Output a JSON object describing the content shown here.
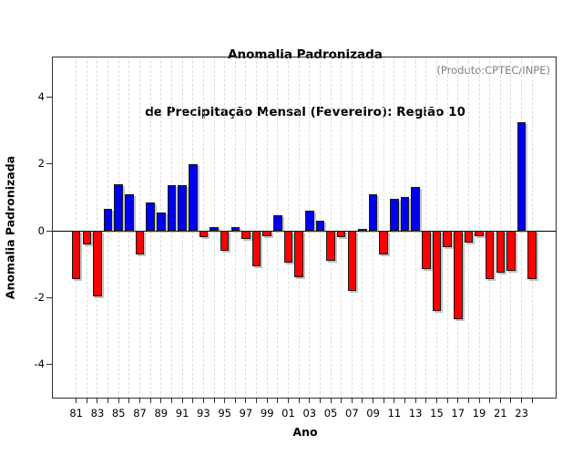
{
  "chart_data": {
    "type": "bar",
    "title_line1": "Anomalia Padronizada",
    "title_line2": "de Precipitação Mensal (Fevereiro): Região 10",
    "annotation": "(Produto:CPTEC/INPE)",
    "xlabel": "Ano",
    "ylabel": "Anomalia Padronizada",
    "ylim": [
      -5.2,
      5.2
    ],
    "yticks": [
      -4,
      -2,
      0,
      2,
      4
    ],
    "ytick_labels": [
      "-4",
      "-2",
      "0",
      "2",
      "4"
    ],
    "xtick_labels": [
      "81",
      "83",
      "85",
      "87",
      "89",
      "91",
      "93",
      "95",
      "97",
      "99",
      "01",
      "03",
      "05",
      "07",
      "09",
      "11",
      "13",
      "15",
      "17",
      "19",
      "21",
      "23"
    ],
    "grid": "dashed vertical line per year",
    "legend": "none",
    "years": [
      1981,
      1982,
      1983,
      1984,
      1985,
      1986,
      1987,
      1988,
      1989,
      1990,
      1991,
      1992,
      1993,
      1994,
      1995,
      1996,
      1997,
      1998,
      1999,
      2000,
      2001,
      2002,
      2003,
      2004,
      2005,
      2006,
      2007,
      2008,
      2009,
      2010,
      2011,
      2012,
      2013,
      2014,
      2015,
      2016,
      2017,
      2018,
      2019,
      2020,
      2021,
      2022,
      2023,
      2024
    ],
    "values": [
      -1.45,
      -0.4,
      -1.95,
      0.65,
      1.4,
      1.1,
      -0.7,
      0.85,
      0.55,
      1.35,
      1.35,
      2.0,
      -0.2,
      0.1,
      -0.6,
      0.1,
      -0.25,
      -1.05,
      -0.15,
      0.45,
      -0.95,
      -1.4,
      0.6,
      0.3,
      -0.9,
      -0.2,
      -1.8,
      0.05,
      1.1,
      -0.7,
      0.95,
      1.0,
      1.3,
      -1.15,
      -2.4,
      -0.5,
      -2.65,
      -0.35,
      -0.15,
      -1.45,
      -1.25,
      -1.2,
      3.25,
      -1.45
    ],
    "colors": {
      "positive": "#0000f0",
      "negative": "#ff0000",
      "grid": "#dcdcdc",
      "axis": "#2f2f2f",
      "annotation_text": "#808080"
    }
  }
}
